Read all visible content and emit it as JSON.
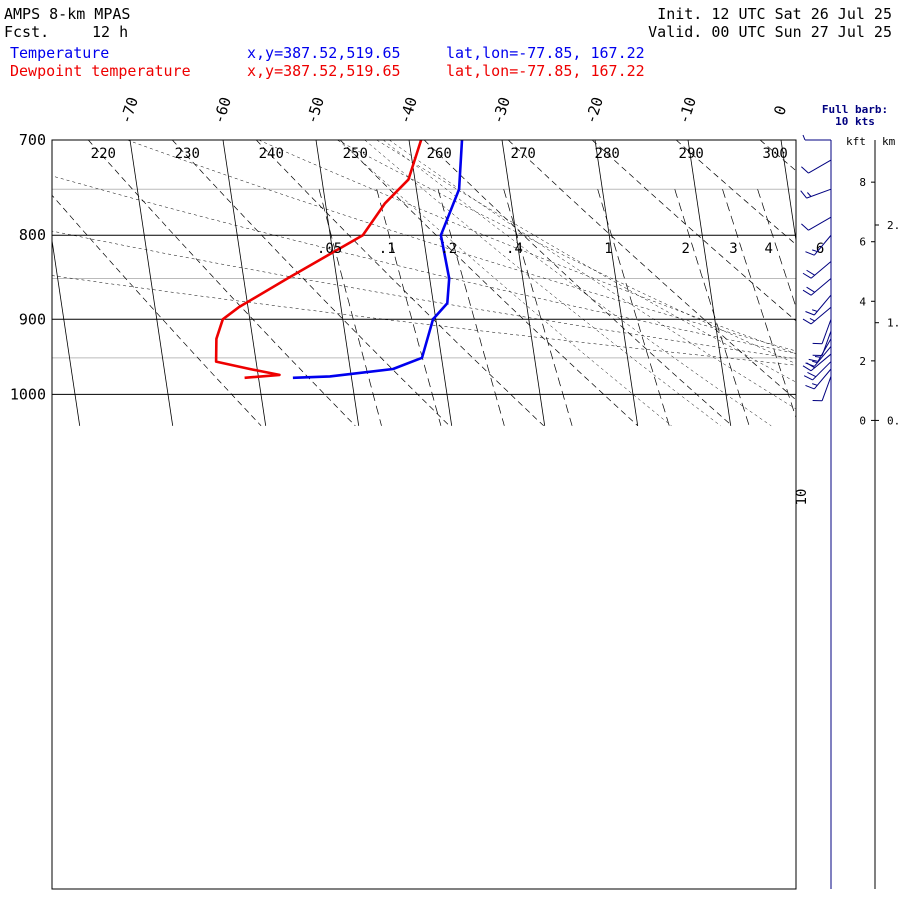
{
  "header": {
    "title": "AMPS 8-km MPAS",
    "fcst_label": "Fcst.",
    "fcst_value": "12 h",
    "init": "Init. 12 UTC Sat 26 Jul 25",
    "valid": "Valid. 00 UTC Sun 27 Jul 25"
  },
  "legend": [
    {
      "name": "Temperature",
      "xy": "x,y=387.52,519.65",
      "latlon": "lat,lon=-77.85, 167.22",
      "color": "#0000ee"
    },
    {
      "name": "Dewpoint temperature",
      "xy": "x,y=387.52,519.65",
      "latlon": "lat,lon=-77.85, 167.22",
      "color": "#ee0000"
    }
  ],
  "barb_panel": {
    "title_line1": "Full barb:",
    "title_line2": "10 kts",
    "kft_label": "kft",
    "km_label": "km",
    "kft_ticks": [
      "8",
      "6",
      "4",
      "2",
      "0"
    ],
    "km_ticks": [
      "2.",
      "1.",
      "0."
    ]
  },
  "chart_data": {
    "type": "line",
    "diagram": "skew-T log-p",
    "y_axis": "pressure (hPa)",
    "ylim": [
      1040,
      700
    ],
    "pressure_ticks": [
      700,
      800,
      900,
      1000
    ],
    "temperature_ticks": [
      -70,
      -60,
      -50,
      -40,
      -30,
      -20,
      -10,
      0
    ],
    "dry_adiabat_labels": [
      "220",
      "230",
      "240",
      "250",
      "260",
      "270",
      "280",
      "290",
      "300"
    ],
    "mixing_ratio_labels": [
      ".05",
      ".1",
      ".2",
      ".4",
      "1",
      "2",
      "3",
      "4",
      "6",
      "10"
    ],
    "series": [
      {
        "name": "Temperature",
        "color": "#0000ee",
        "points": [
          [
            700,
            -34.3
          ],
          [
            750,
            -35.4
          ],
          [
            800,
            -38.1
          ],
          [
            850,
            -37.9
          ],
          [
            880,
            -38.5
          ],
          [
            900,
            -40.3
          ],
          [
            950,
            -42.1
          ],
          [
            965,
            -45.4
          ],
          [
            975,
            -52.3
          ],
          [
            977,
            -56.3
          ]
        ]
      },
      {
        "name": "Dewpoint temperature",
        "color": "#ee0000",
        "points": [
          [
            700,
            -38.7
          ],
          [
            740,
            -40.7
          ],
          [
            765,
            -43.6
          ],
          [
            800,
            -46.5
          ],
          [
            850,
            -55.3
          ],
          [
            885,
            -61.0
          ],
          [
            900,
            -62.9
          ],
          [
            925,
            -63.9
          ],
          [
            955,
            -64.3
          ],
          [
            965,
            -60.8
          ],
          [
            973,
            -57.7
          ],
          [
            977,
            -61.5
          ]
        ]
      }
    ],
    "wind_barbs": [
      {
        "p": 700,
        "dir": 270,
        "spd": 5
      },
      {
        "p": 720,
        "dir": 240,
        "spd": 10
      },
      {
        "p": 750,
        "dir": 250,
        "spd": 15
      },
      {
        "p": 780,
        "dir": 240,
        "spd": 10
      },
      {
        "p": 800,
        "dir": 220,
        "spd": 15
      },
      {
        "p": 830,
        "dir": 230,
        "spd": 20
      },
      {
        "p": 850,
        "dir": 230,
        "spd": 20
      },
      {
        "p": 870,
        "dir": 220,
        "spd": 15
      },
      {
        "p": 885,
        "dir": 230,
        "spd": 15
      },
      {
        "p": 900,
        "dir": 200,
        "spd": 10
      },
      {
        "p": 915,
        "dir": 200,
        "spd": 10
      },
      {
        "p": 925,
        "dir": 210,
        "spd": 15
      },
      {
        "p": 935,
        "dir": 220,
        "spd": 15
      },
      {
        "p": 945,
        "dir": 230,
        "spd": 20
      },
      {
        "p": 955,
        "dir": 225,
        "spd": 20
      },
      {
        "p": 965,
        "dir": 220,
        "spd": 15
      },
      {
        "p": 975,
        "dir": 200,
        "spd": 10
      }
    ]
  }
}
